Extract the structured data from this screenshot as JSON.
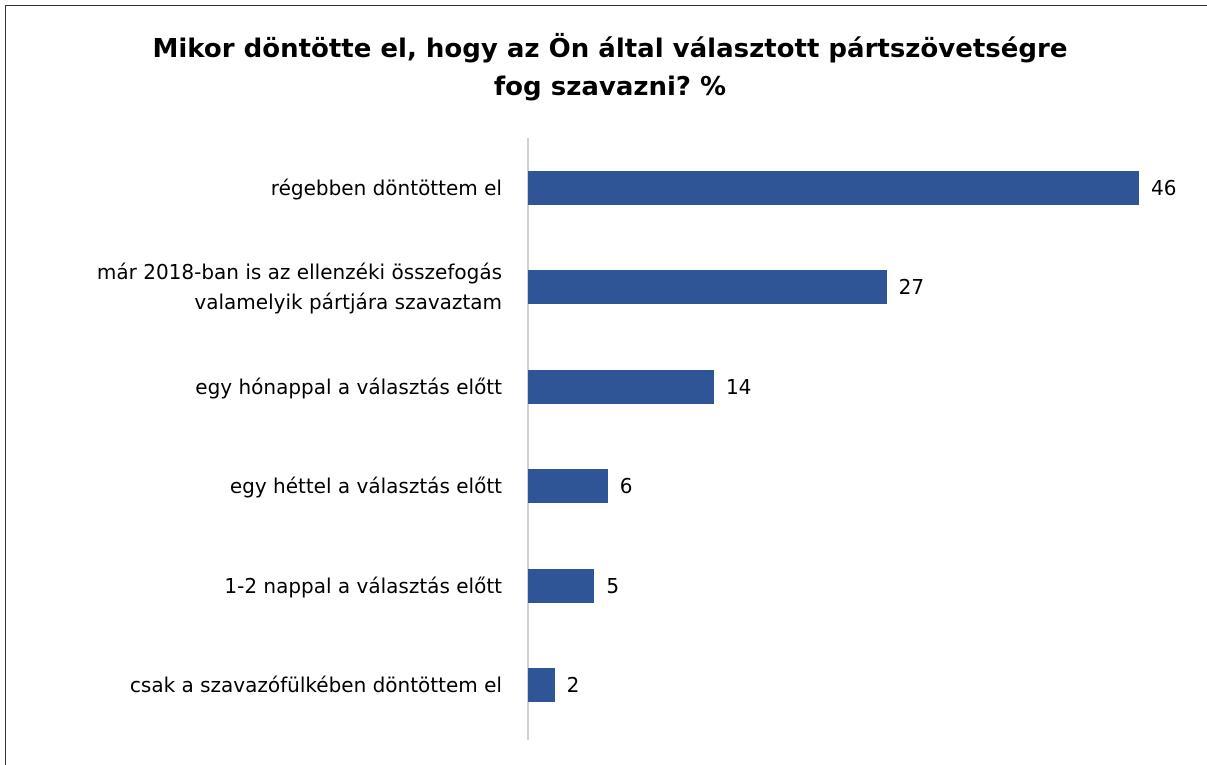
{
  "chart_data": {
    "type": "bar",
    "orientation": "horizontal",
    "title": "Mikor döntötte el, hogy az Ön által választott pártszövetségre\nfog szavazni? %",
    "categories": [
      "régebben döntöttem el",
      "már 2018-ban is az ellenzéki összefogás\nvalamelyik pártjára szavaztam",
      "egy hónappal a választás előtt",
      "egy héttel a választás előtt",
      "1-2 nappal a választás előtt",
      "csak a szavazófülkében döntöttem el"
    ],
    "values": [
      46,
      27,
      14,
      6,
      5,
      2
    ],
    "color": "#2f5597"
  }
}
